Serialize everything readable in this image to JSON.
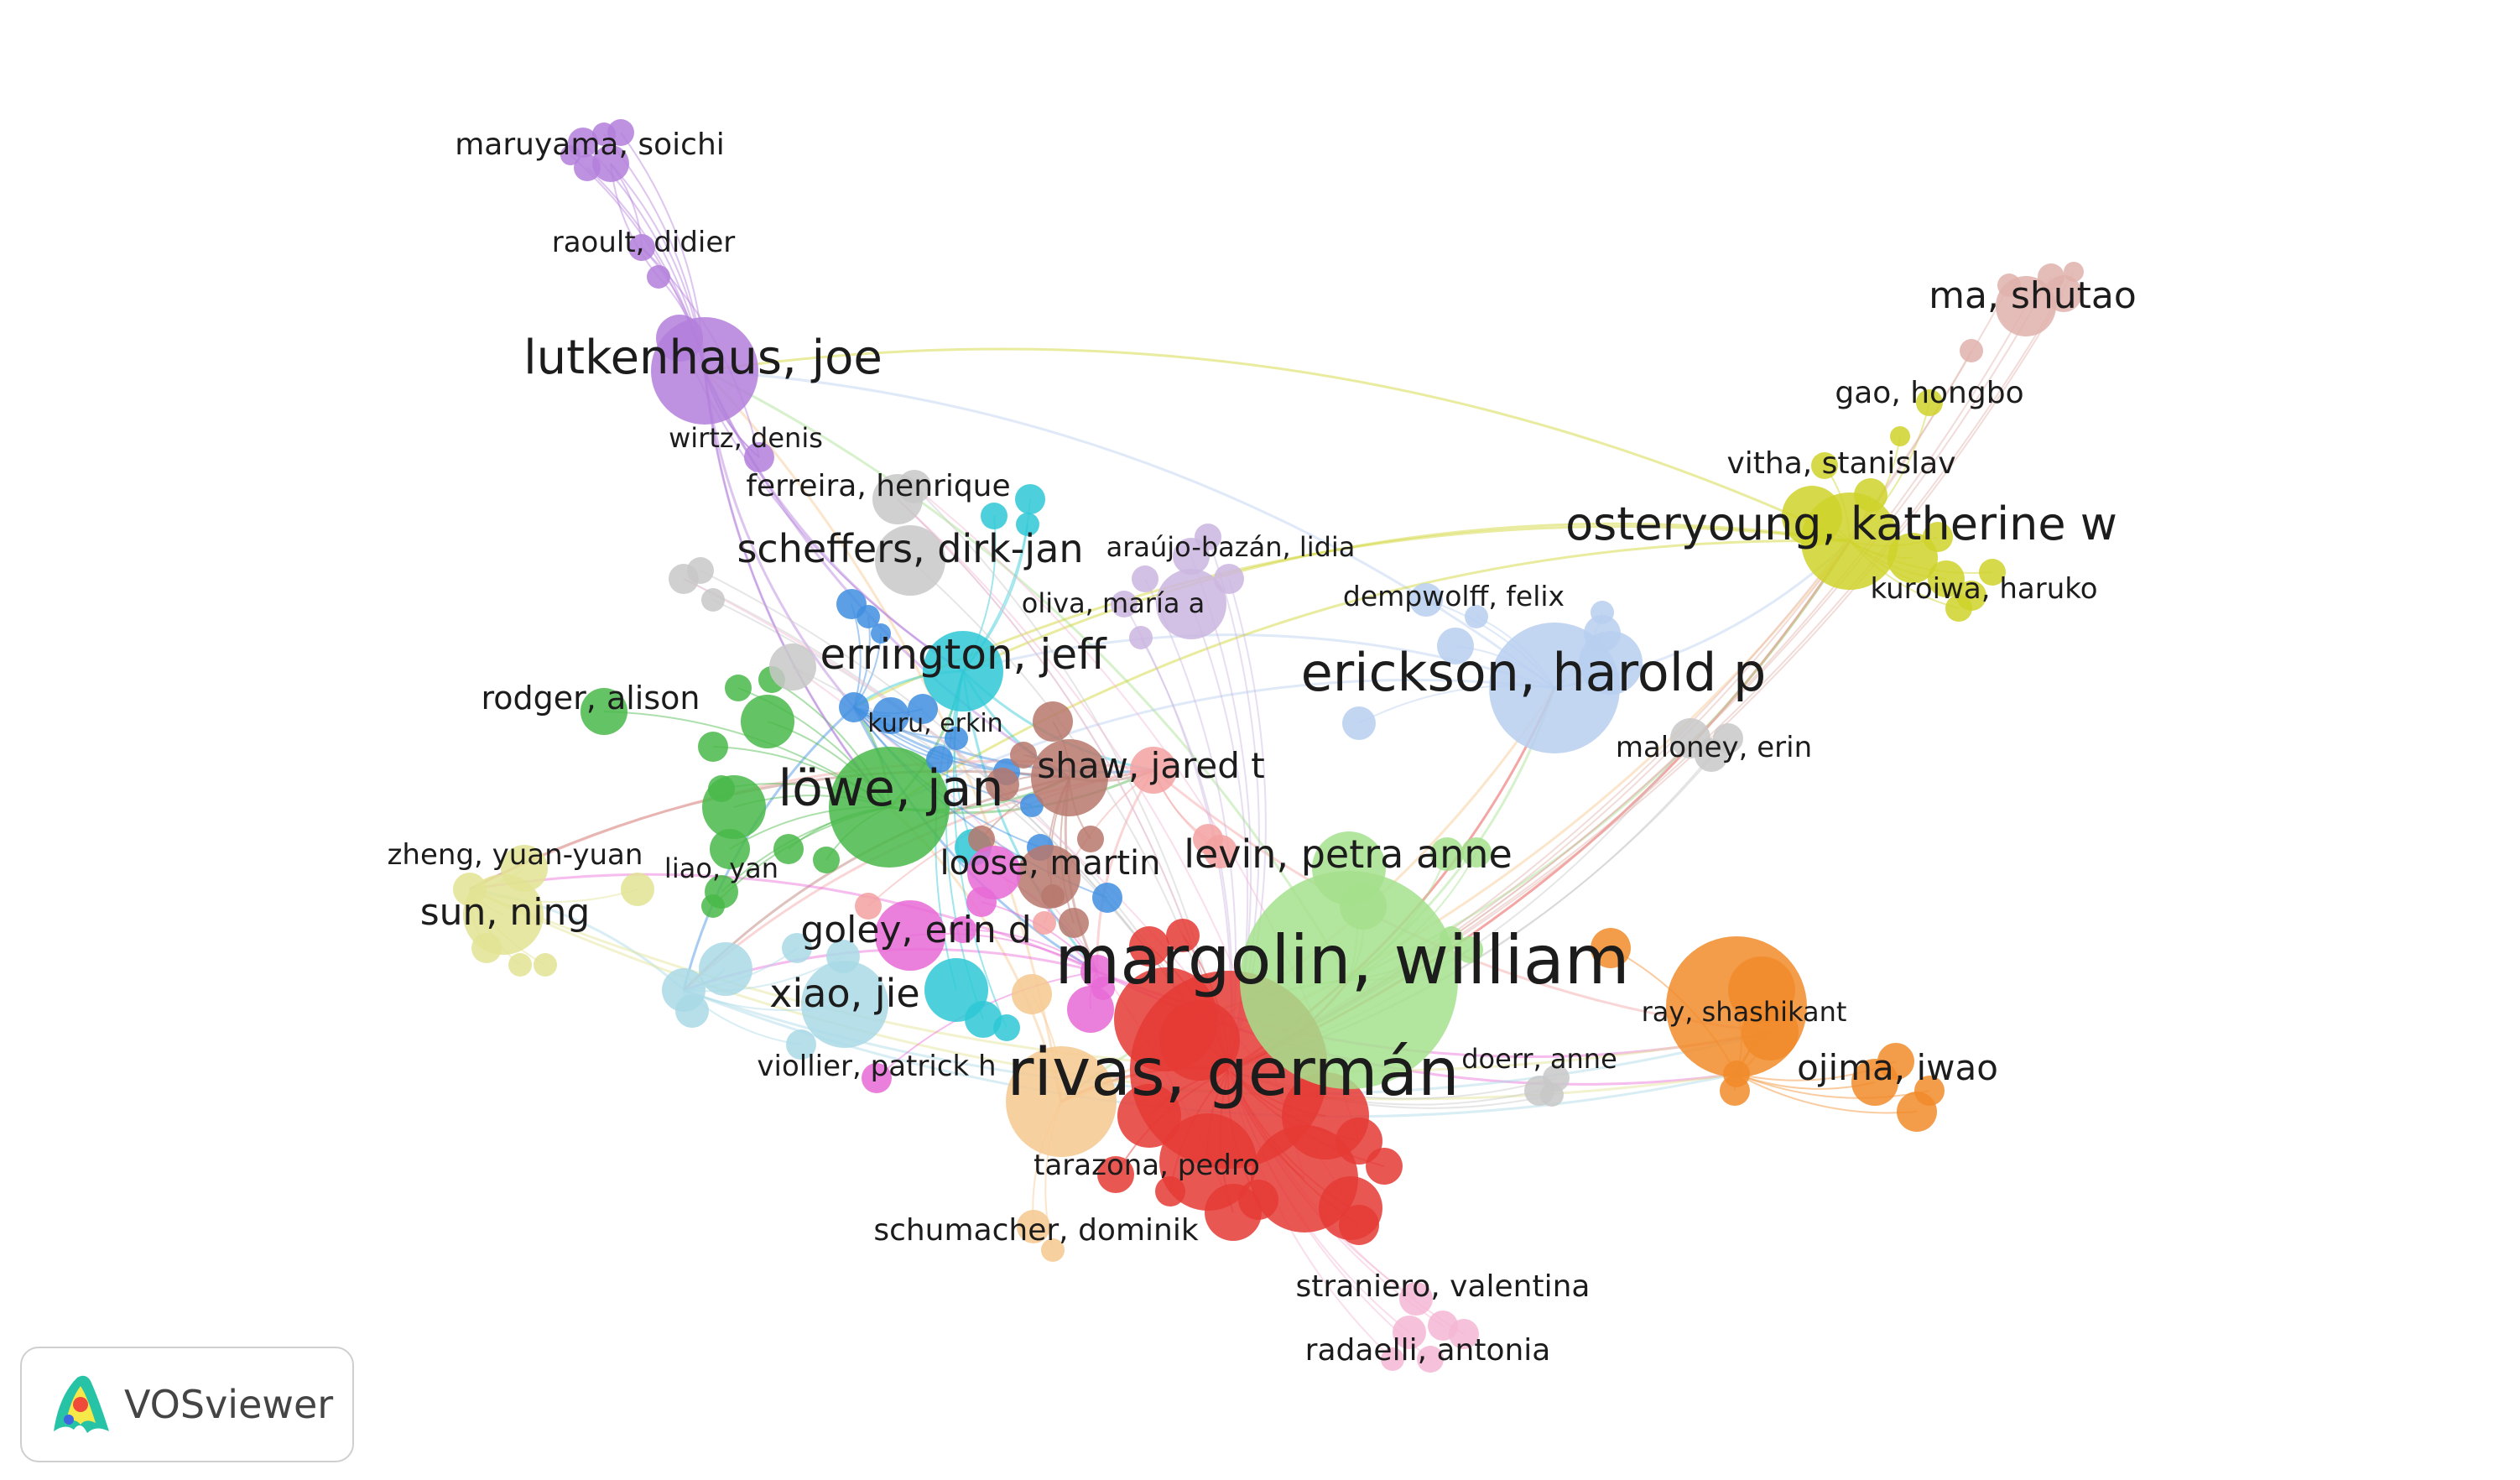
{
  "app": {
    "name": "VOSviewer"
  },
  "colors": {
    "red": "#e53935",
    "green_light": "#a5e08d",
    "orange_light": "#f6c88f",
    "blue_light": "#b7cff0",
    "yellow": "#cfd22a",
    "purple": "#b37fdb",
    "green": "#49b949",
    "cyan": "#2ec8d6",
    "brown": "#b7786c",
    "blue": "#3f8ee0",
    "magenta": "#e86ad6",
    "salmon": "#f3a1a1",
    "light_cyan": "#a9d9e6",
    "khaki": "#e2e393",
    "orange": "#f18b2a",
    "pink": "#f4b6d4",
    "gray": "#c8c8c8",
    "lavender": "#cbb6e0",
    "rose": "#e0b1ab",
    "link": "#e8c6c6"
  },
  "network": {
    "labels": [
      "margolin, william",
      "rivas, germán",
      "erickson, harold p",
      "osteryoung, katherine w",
      "lutkenhaus, joe",
      "löwe, jan",
      "errington, jeff",
      "levin, petra anne",
      "scheffers, dirk-jan",
      "shaw, jared t",
      "loose, martin",
      "goley, erin d",
      "xiao, jie",
      "sun, ning",
      "ojima, iwao",
      "ma, shutao",
      "rodger, alison",
      "ray, shashikant",
      "maruyama, soichi",
      "raoult, didier",
      "wirtz, denis",
      "ferreira, henrique",
      "araújo-bazán, lidia",
      "oliva, maría a",
      "dempwolff, felix",
      "kuru, erkin",
      "maloney, erin",
      "gao, hongbo",
      "vitha, stanislav",
      "kuroiwa, haruko",
      "zheng, yuan-yuan",
      "liao, yan",
      "viollier, patrick h",
      "doerr, anne",
      "tarazona, pedro",
      "schumacher, dominik",
      "straniero, valentina",
      "radaelli, antonia"
    ]
  }
}
